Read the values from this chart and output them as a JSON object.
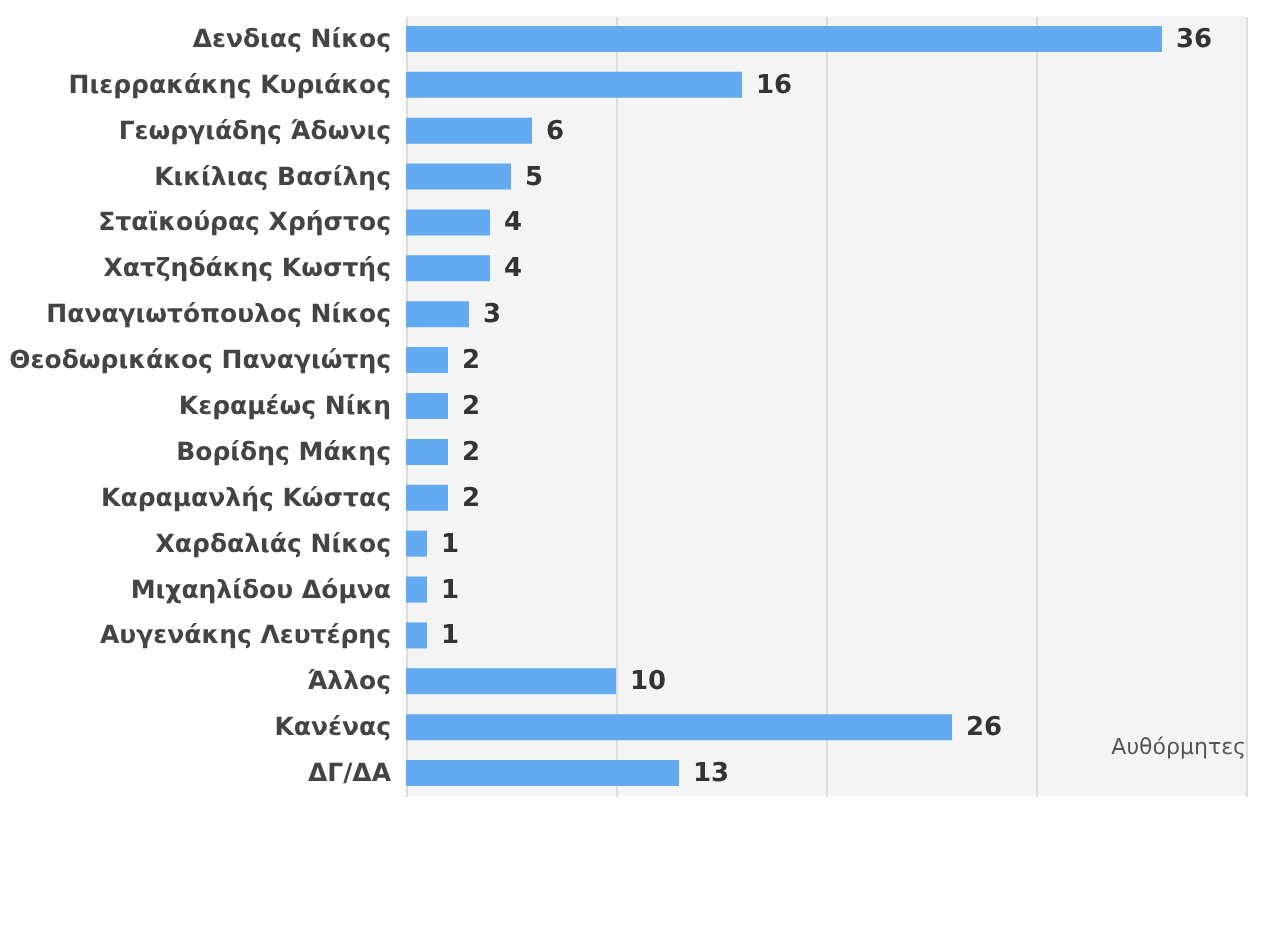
{
  "chart_data": {
    "type": "bar",
    "orientation": "horizontal",
    "categories": [
      "Δενδιας Νίκος",
      "Πιερρακάκης Κυριάκος",
      "Γεωργιάδης Άδωνις",
      "Κικίλιας Βασίλης",
      "Σταϊκούρας Χρήστος",
      "Χατζηδάκης Κωστής",
      "Παναγιωτόπουλος Νίκος",
      "Θεοδωρικάκος Παναγιώτης",
      "Κεραμέως Νίκη",
      "Βορίδης Μάκης",
      "Καραμανλής Κώστας",
      "Χαρδαλιάς Νίκος",
      "Μιχαηλίδου Δόμνα",
      "Αυγενάκης Λευτέρης",
      "Άλλος",
      "Κανένας",
      "ΔΓ/ΔΑ"
    ],
    "values": [
      36,
      16,
      6,
      5,
      4,
      4,
      3,
      2,
      2,
      2,
      2,
      1,
      1,
      1,
      10,
      26,
      13
    ],
    "color": "#64aaf0",
    "data_labels": true,
    "grid": "x",
    "tick_labels": "y",
    "xlim": [
      0,
      40
    ],
    "xticks": [
      {
        "value": 0,
        "label": null
      },
      {
        "value": 10,
        "label": null
      },
      {
        "value": 20,
        "label": null
      },
      {
        "value": 30,
        "label": null
      },
      {
        "value": 40,
        "label": null
      }
    ],
    "annotations": [
      "Αυθόρμητες"
    ]
  }
}
